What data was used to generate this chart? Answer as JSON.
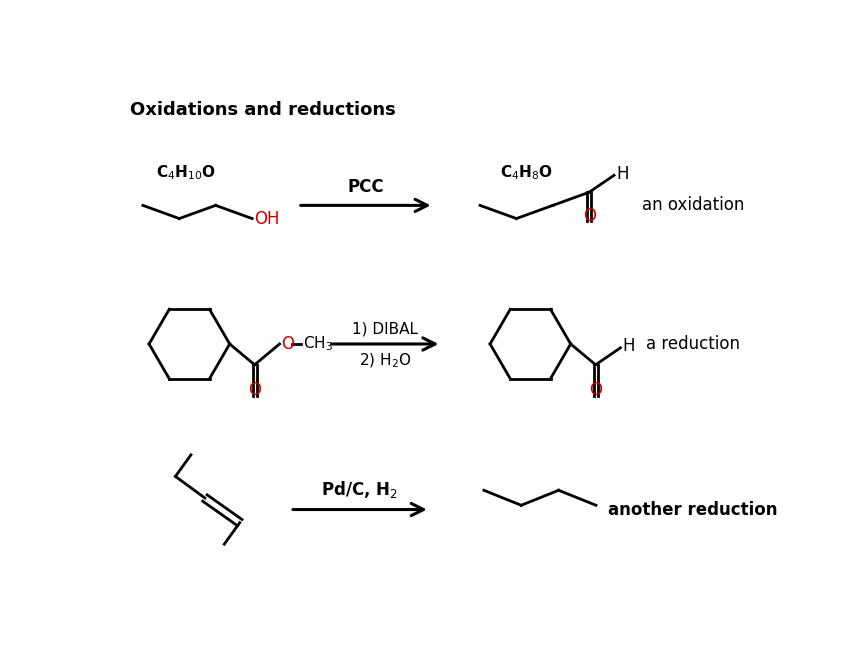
{
  "title": "Oxidations and reductions",
  "title_fontsize": 13,
  "background_color": "#ffffff",
  "black": "#000000",
  "red": "#cc0000",
  "reaction1": {
    "label": "an oxidation",
    "arrow_label": "PCC",
    "formula_left": "C$_4$H$_{10}$O",
    "formula_right": "C$_4$H$_8$O"
  },
  "reaction2": {
    "label": "a reduction",
    "arrow_label1": "1) DIBAL",
    "arrow_label2": "2) H$_2$O"
  },
  "reaction3": {
    "label": "another reduction",
    "arrow_label": "Pd/C, H$_2$"
  }
}
